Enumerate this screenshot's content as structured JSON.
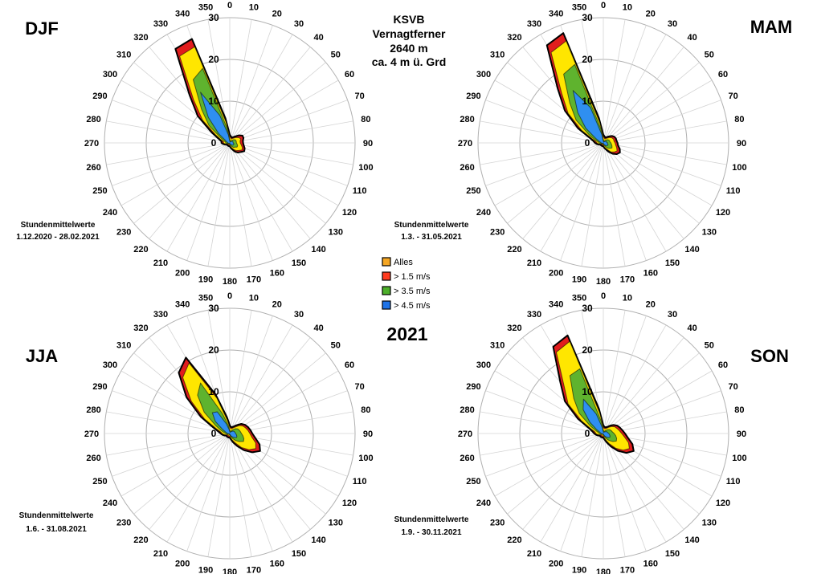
{
  "header": {
    "station": "KSVB",
    "name": "Vernagtferner",
    "altitude": "2640 m",
    "height": "ca. 4 m ü. Grd"
  },
  "year": "2021",
  "legend": [
    {
      "label": "Alles",
      "color": "#f5a623"
    },
    {
      "label": "> 1.5 m/s",
      "color": "#ff3b1f"
    },
    {
      "label": "> 3.5 m/s",
      "color": "#4caf2a"
    },
    {
      "label": "> 4.5 m/s",
      "color": "#1e73e8"
    }
  ],
  "colors": {
    "outline": "#000000",
    "alles": "#e11d1d",
    "gt15": "#ffe600",
    "gt35": "#5fb32e",
    "gt45": "#2f8ff0",
    "grid": "#b0b0b0"
  },
  "chart_data": [
    {
      "type": "windrose",
      "season": "DJF",
      "note_label": "Stundenmittelwerte",
      "note_period": "1.12.2020 - 28.02.2021",
      "radial_ticks": [
        0,
        10,
        20,
        30
      ],
      "rmax": 30,
      "directions": [
        0,
        10,
        20,
        30,
        40,
        50,
        60,
        70,
        80,
        90,
        100,
        110,
        120,
        130,
        140,
        150,
        160,
        170,
        180,
        190,
        200,
        210,
        220,
        230,
        240,
        250,
        260,
        270,
        280,
        290,
        300,
        310,
        320,
        330,
        340,
        350
      ],
      "series": [
        {
          "name": "Alles",
          "values": [
            2.0,
            1.6,
            1.4,
            1.6,
            2.0,
            2.8,
            3.5,
            3.5,
            3.2,
            3.2,
            3.4,
            3.8,
            4.0,
            3.4,
            3.0,
            2.4,
            1.6,
            1.2,
            0.8,
            0.8,
            0.8,
            0.8,
            0.8,
            0.8,
            0.8,
            1.2,
            1.6,
            2.0,
            2.0,
            2.8,
            5.0,
            10.0,
            15.0,
            26.0,
            26.5,
            6.0
          ]
        },
        {
          "name": "> 1.5 m/s",
          "values": [
            1.5,
            1.2,
            1.0,
            1.2,
            1.5,
            2.0,
            2.5,
            2.8,
            2.5,
            2.5,
            2.8,
            3.2,
            3.4,
            2.8,
            2.4,
            1.8,
            1.2,
            0.8,
            0.5,
            0.5,
            0.5,
            0.5,
            0.5,
            0.5,
            0.5,
            0.8,
            1.2,
            1.5,
            1.5,
            2.2,
            4.0,
            8.5,
            13.5,
            24.0,
            24.5,
            5.0
          ]
        },
        {
          "name": "> 3.5 m/s",
          "values": [
            0.8,
            0.6,
            0.5,
            0.6,
            0.8,
            1.2,
            1.5,
            1.6,
            1.6,
            1.6,
            1.8,
            2.0,
            2.0,
            1.6,
            1.4,
            1.0,
            0.6,
            0.4,
            0.3,
            0.3,
            0.3,
            0.3,
            0.3,
            0.3,
            0.3,
            0.5,
            0.8,
            1.0,
            1.0,
            1.5,
            2.5,
            6.5,
            10.5,
            17.5,
            19.0,
            3.5
          ]
        },
        {
          "name": "> 4.5 m/s",
          "values": [
            0.4,
            0.3,
            0.2,
            0.3,
            0.4,
            0.6,
            0.8,
            0.8,
            0.8,
            0.8,
            1.0,
            1.0,
            1.0,
            0.8,
            0.6,
            0.5,
            0.3,
            0.2,
            0.1,
            0.1,
            0.1,
            0.1,
            0.1,
            0.1,
            0.1,
            0.2,
            0.4,
            0.5,
            0.5,
            0.8,
            1.2,
            3.5,
            8.0,
            14.0,
            7.0,
            2.0
          ]
        }
      ]
    },
    {
      "type": "windrose",
      "season": "MAM",
      "note_label": "Stundenmittelwerte",
      "note_period": "1.3. - 31.05.2021",
      "radial_ticks": [
        0,
        10,
        20,
        30
      ],
      "rmax": 30,
      "directions": [
        0,
        10,
        20,
        30,
        40,
        50,
        60,
        70,
        80,
        90,
        100,
        110,
        120,
        130,
        140,
        150,
        160,
        170,
        180,
        190,
        200,
        210,
        220,
        230,
        240,
        250,
        260,
        270,
        280,
        290,
        300,
        310,
        320,
        330,
        340,
        350
      ],
      "series": [
        {
          "name": "Alles",
          "values": [
            2.0,
            1.6,
            1.4,
            1.6,
            2.0,
            2.6,
            3.0,
            3.2,
            3.2,
            3.4,
            3.6,
            4.2,
            4.6,
            4.2,
            3.4,
            2.4,
            1.6,
            1.2,
            0.8,
            0.8,
            0.8,
            0.8,
            0.8,
            0.8,
            0.8,
            1.2,
            1.6,
            2.0,
            2.4,
            3.4,
            7.0,
            12.0,
            17.0,
            27.0,
            28.0,
            6.0
          ]
        },
        {
          "name": "> 1.5 m/s",
          "values": [
            1.5,
            1.2,
            1.0,
            1.2,
            1.5,
            2.0,
            2.4,
            2.6,
            2.6,
            2.8,
            3.0,
            3.4,
            3.8,
            3.4,
            2.8,
            1.8,
            1.2,
            0.8,
            0.5,
            0.5,
            0.5,
            0.5,
            0.5,
            0.5,
            0.5,
            0.8,
            1.2,
            1.5,
            1.8,
            2.8,
            6.0,
            11.0,
            15.5,
            25.0,
            26.0,
            5.0
          ]
        },
        {
          "name": "> 3.5 m/s",
          "values": [
            0.8,
            0.6,
            0.5,
            0.6,
            0.8,
            1.2,
            1.4,
            1.6,
            1.6,
            1.8,
            2.0,
            2.2,
            2.4,
            2.0,
            1.6,
            1.0,
            0.6,
            0.4,
            0.3,
            0.3,
            0.3,
            0.3,
            0.3,
            0.3,
            0.3,
            0.5,
            0.8,
            1.0,
            1.2,
            2.0,
            4.0,
            8.5,
            12.5,
            19.0,
            20.0,
            3.5
          ]
        },
        {
          "name": "> 4.5 m/s",
          "values": [
            0.4,
            0.3,
            0.2,
            0.3,
            0.4,
            0.6,
            0.8,
            0.8,
            0.8,
            1.0,
            1.0,
            1.2,
            1.2,
            1.0,
            0.8,
            0.5,
            0.3,
            0.2,
            0.1,
            0.1,
            0.1,
            0.1,
            0.1,
            0.1,
            0.1,
            0.2,
            0.4,
            0.5,
            0.6,
            1.0,
            2.0,
            5.5,
            9.5,
            14.5,
            9.0,
            2.0
          ]
        }
      ]
    },
    {
      "type": "windrose",
      "season": "JJA",
      "note_label": "Stundenmittelwerte",
      "note_period": "1.6. - 31.08.2021",
      "radial_ticks": [
        0,
        10,
        20,
        30
      ],
      "rmax": 30,
      "directions": [
        0,
        10,
        20,
        30,
        40,
        50,
        60,
        70,
        80,
        90,
        100,
        110,
        120,
        130,
        140,
        150,
        160,
        170,
        180,
        190,
        200,
        210,
        220,
        230,
        240,
        250,
        260,
        270,
        280,
        290,
        300,
        310,
        320,
        330,
        340,
        350
      ],
      "series": [
        {
          "name": "Alles",
          "values": [
            2.0,
            1.6,
            1.6,
            2.0,
            2.6,
            3.6,
            4.2,
            4.6,
            5.0,
            5.4,
            6.2,
            7.6,
            8.4,
            7.0,
            5.2,
            3.4,
            2.2,
            1.4,
            1.0,
            1.0,
            1.0,
            1.0,
            1.0,
            1.0,
            1.0,
            1.4,
            1.8,
            2.2,
            2.8,
            4.2,
            8.0,
            13.5,
            19.0,
            21.0,
            10.0,
            4.0
          ]
        },
        {
          "name": "> 1.5 m/s",
          "values": [
            1.5,
            1.2,
            1.2,
            1.5,
            2.0,
            3.0,
            3.6,
            4.0,
            4.4,
            4.8,
            5.4,
            6.6,
            7.2,
            6.0,
            4.4,
            2.6,
            1.6,
            1.0,
            0.6,
            0.6,
            0.6,
            0.6,
            0.6,
            0.6,
            0.6,
            1.0,
            1.4,
            1.8,
            2.2,
            3.5,
            7.0,
            12.0,
            17.5,
            19.5,
            9.0,
            3.2
          ]
        },
        {
          "name": "> 3.5 m/s",
          "values": [
            0.8,
            0.6,
            0.6,
            0.8,
            1.2,
            1.8,
            2.2,
            2.4,
            2.6,
            2.8,
            3.2,
            3.6,
            3.8,
            3.0,
            2.2,
            1.4,
            0.8,
            0.5,
            0.3,
            0.3,
            0.3,
            0.3,
            0.3,
            0.3,
            0.3,
            0.5,
            0.8,
            1.0,
            1.4,
            2.2,
            4.0,
            8.0,
            12.0,
            14.0,
            5.0,
            2.0
          ]
        },
        {
          "name": "> 4.5 m/s",
          "values": [
            0.4,
            0.3,
            0.3,
            0.4,
            0.6,
            0.9,
            1.1,
            1.2,
            1.3,
            1.4,
            1.6,
            1.8,
            1.9,
            1.5,
            1.1,
            0.7,
            0.4,
            0.2,
            0.1,
            0.1,
            0.1,
            0.1,
            0.1,
            0.1,
            0.1,
            0.2,
            0.4,
            0.5,
            0.7,
            1.1,
            2.0,
            4.5,
            6.5,
            6.0,
            2.5,
            1.0
          ]
        }
      ]
    },
    {
      "type": "windrose",
      "season": "SON",
      "note_label": "Stundenmittelwerte",
      "note_period": "1.9. - 30.11.2021",
      "radial_ticks": [
        0,
        10,
        20,
        30
      ],
      "rmax": 30,
      "directions": [
        0,
        10,
        20,
        30,
        40,
        50,
        60,
        70,
        80,
        90,
        100,
        110,
        120,
        130,
        140,
        150,
        160,
        170,
        180,
        190,
        200,
        210,
        220,
        230,
        240,
        250,
        260,
        270,
        280,
        290,
        300,
        310,
        320,
        330,
        340,
        350
      ],
      "series": [
        {
          "name": "Alles",
          "values": [
            2.0,
            1.6,
            1.6,
            1.8,
            2.4,
            3.2,
            3.8,
            4.2,
            4.6,
            5.2,
            6.0,
            7.4,
            8.4,
            7.2,
            5.4,
            3.6,
            2.2,
            1.4,
            1.0,
            1.0,
            1.0,
            1.0,
            1.0,
            1.0,
            1.0,
            1.4,
            1.8,
            2.2,
            2.6,
            3.6,
            7.0,
            12.0,
            16.0,
            24.0,
            25.0,
            6.0
          ]
        },
        {
          "name": "> 1.5 m/s",
          "values": [
            1.5,
            1.2,
            1.2,
            1.4,
            1.9,
            2.6,
            3.2,
            3.5,
            3.9,
            4.4,
            5.2,
            6.4,
            7.2,
            6.2,
            4.6,
            2.8,
            1.6,
            1.0,
            0.6,
            0.6,
            0.6,
            0.6,
            0.6,
            0.6,
            0.6,
            1.0,
            1.4,
            1.8,
            2.0,
            3.0,
            6.0,
            11.0,
            14.5,
            22.5,
            23.5,
            5.0
          ]
        },
        {
          "name": "> 3.5 m/s",
          "values": [
            0.8,
            0.6,
            0.6,
            0.7,
            1.0,
            1.4,
            1.8,
            2.0,
            2.2,
            2.6,
            3.0,
            3.4,
            3.6,
            3.0,
            2.2,
            1.4,
            0.8,
            0.5,
            0.3,
            0.3,
            0.3,
            0.3,
            0.3,
            0.3,
            0.3,
            0.5,
            0.8,
            1.0,
            1.2,
            1.8,
            3.6,
            7.5,
            11.0,
            16.0,
            16.5,
            3.0
          ]
        },
        {
          "name": "> 4.5 m/s",
          "values": [
            0.4,
            0.3,
            0.3,
            0.4,
            0.5,
            0.7,
            0.9,
            1.0,
            1.1,
            1.3,
            1.5,
            1.7,
            1.8,
            1.5,
            1.1,
            0.7,
            0.4,
            0.2,
            0.1,
            0.1,
            0.1,
            0.1,
            0.1,
            0.1,
            0.1,
            0.2,
            0.4,
            0.5,
            0.6,
            0.9,
            1.8,
            4.2,
            7.5,
            9.5,
            5.0,
            1.5
          ]
        }
      ]
    }
  ]
}
